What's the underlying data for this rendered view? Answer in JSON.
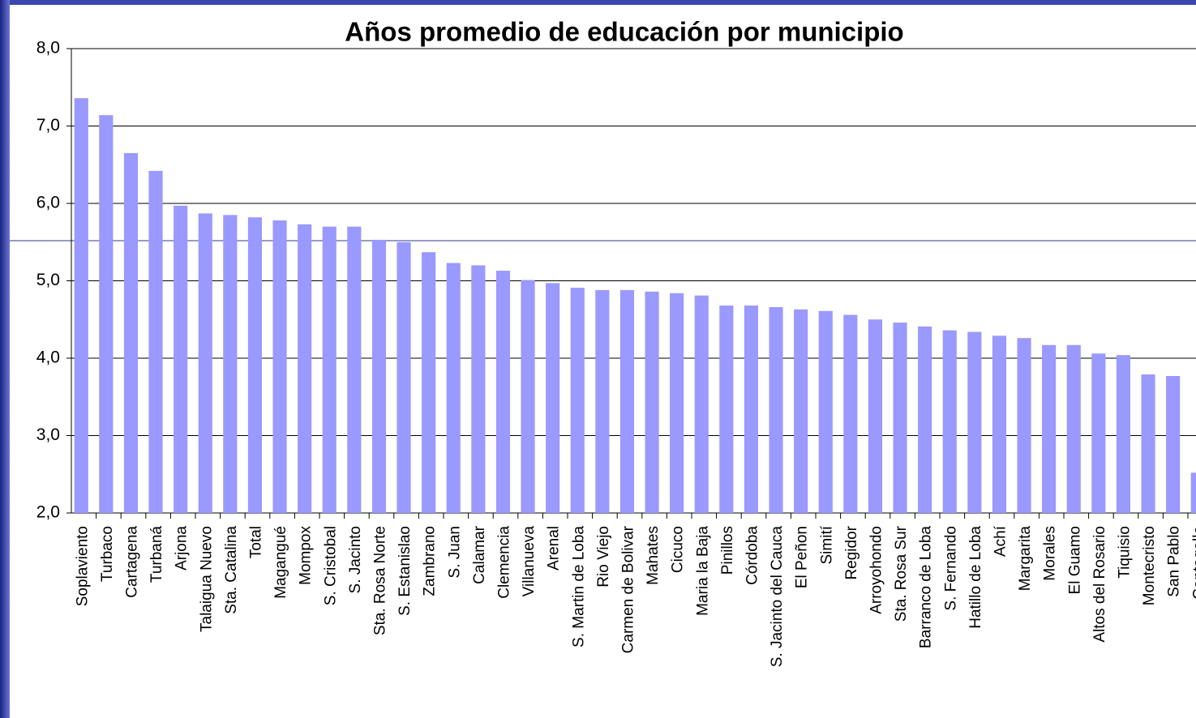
{
  "chart_data": {
    "type": "bar",
    "title": "Años promedio de educación por municipio",
    "categories": [
      "Soplaviento",
      "Turbaco",
      "Cartagena",
      "Turbaná",
      "Arjona",
      "Talaigua Nuevo",
      "Sta. Catalina",
      "Total",
      "Magangué",
      "Mompox",
      "S. Cristobal",
      "S. Jacinto",
      "Sta. Rosa Norte",
      "S. Estanislao",
      "Zambrano",
      "S. Juan",
      "Calamar",
      "Clemencia",
      "Villanueva",
      "Arenal",
      "S. Martin de Loba",
      "Rio Viejo",
      "Carmen de Bolivar",
      "Mahates",
      "Cicuco",
      "Maria la Baja",
      "Pinillos",
      "Córdoba",
      "S. Jacinto del Cauca",
      "El Peñon",
      "Simití",
      "Regidor",
      "Arroyohondo",
      "Sta. Rosa Sur",
      "Barranco de Loba",
      "S. Fernando",
      "Hatillo de Loba",
      "Achí",
      "Margarita",
      "Morales",
      "El Guamo",
      "Altos del Rosario",
      "Tiquisio",
      "Montecristo",
      "San Pablo",
      "Cantagallo"
    ],
    "values": [
      7.36,
      7.14,
      6.65,
      6.42,
      5.97,
      5.87,
      5.85,
      5.82,
      5.78,
      5.73,
      5.7,
      5.7,
      5.53,
      5.5,
      5.37,
      5.23,
      5.2,
      5.13,
      5.01,
      4.97,
      4.91,
      4.88,
      4.88,
      4.86,
      4.84,
      4.81,
      4.68,
      4.68,
      4.66,
      4.63,
      4.61,
      4.56,
      4.5,
      4.46,
      4.41,
      4.36,
      4.34,
      4.29,
      4.26,
      4.17,
      4.17,
      4.06,
      4.04,
      3.79,
      3.77,
      2.52
    ],
    "color": "#9999ff",
    "ylim": [
      2,
      8
    ],
    "yticks": [
      {
        "value": 2,
        "label": "2,0"
      },
      {
        "value": 3,
        "label": "3,0"
      },
      {
        "value": 4,
        "label": "4,0"
      },
      {
        "value": 5,
        "label": "5,0"
      },
      {
        "value": 6,
        "label": "6,0"
      },
      {
        "value": 7,
        "label": "7,0"
      },
      {
        "value": 8,
        "label": "8,0"
      }
    ],
    "grid": true
  }
}
